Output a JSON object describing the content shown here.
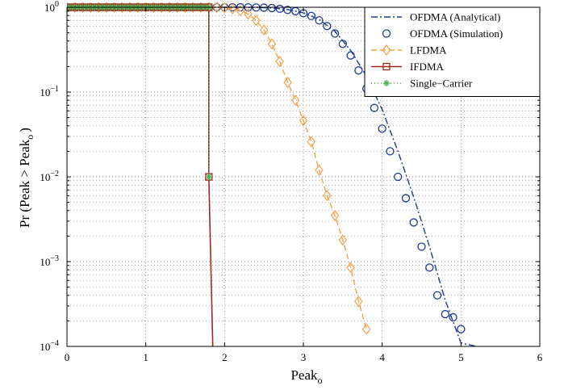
{
  "chart_data": {
    "type": "line",
    "title": "",
    "xlabel": "Peak",
    "xlabel_sub": "o",
    "ylabel_main": "Pr (Peak > Peak",
    "ylabel_sub": "o",
    "ylabel_tail": ")",
    "xlim": [
      0,
      6
    ],
    "ylim": [
      0.0001,
      1
    ],
    "y_scale": "log",
    "grid": true,
    "legend_placement": "top-right",
    "x_ticks": [
      0,
      1,
      2,
      3,
      4,
      5,
      6
    ],
    "x_tick_labels": [
      "0",
      "1",
      "2",
      "3",
      "4",
      "5",
      "6"
    ],
    "y_ticks": [
      {
        "value": 0.0001,
        "base": "10",
        "exp": "−4"
      },
      {
        "value": 0.001,
        "base": "10",
        "exp": "−3"
      },
      {
        "value": 0.01,
        "base": "10",
        "exp": "−2"
      },
      {
        "value": 0.1,
        "base": "10",
        "exp": "−1"
      },
      {
        "value": 1,
        "base": "10",
        "exp": "0"
      }
    ],
    "series": [
      {
        "name": "OFDMA (Analytical)",
        "color": "#1f3a93",
        "line": "dashdot",
        "marker": "none",
        "x": [
          0,
          2.0,
          2.2,
          2.4,
          2.6,
          2.8,
          3.0,
          3.2,
          3.4,
          3.6,
          3.8,
          4.0,
          4.2,
          4.4,
          4.6,
          4.8,
          5.0,
          5.2
        ],
        "y": [
          1,
          1,
          0.999,
          0.995,
          0.98,
          0.94,
          0.86,
          0.72,
          0.52,
          0.31,
          0.155,
          0.062,
          0.02,
          0.0058,
          0.0015,
          0.00035,
          0.00011,
          0.0001
        ]
      },
      {
        "name": "OFDMA (Simulation)",
        "color": "#1f3a93",
        "line": "none",
        "marker": "circle",
        "x": [
          1.9,
          2.0,
          2.1,
          2.2,
          2.3,
          2.4,
          2.5,
          2.6,
          2.7,
          2.8,
          2.9,
          3.0,
          3.1,
          3.2,
          3.3,
          3.4,
          3.5,
          3.6,
          3.7,
          3.8,
          3.9,
          4.0,
          4.1,
          4.2,
          4.3,
          4.4,
          4.5,
          4.6,
          4.7,
          4.8,
          4.9,
          5.0
        ],
        "y": [
          1,
          1,
          1,
          0.999,
          0.998,
          0.995,
          0.99,
          0.98,
          0.96,
          0.93,
          0.9,
          0.85,
          0.79,
          0.7,
          0.6,
          0.49,
          0.37,
          0.27,
          0.18,
          0.11,
          0.065,
          0.037,
          0.02,
          0.01,
          0.0056,
          0.0029,
          0.0015,
          0.00085,
          0.0004,
          0.00024,
          0.00022,
          0.00016
        ]
      },
      {
        "name": "LFDMA",
        "color": "#f5a04a",
        "line": "dashed",
        "marker": "diamond",
        "x": [
          0,
          0.1,
          0.2,
          0.3,
          0.4,
          0.5,
          0.6,
          0.7,
          0.8,
          0.9,
          1.0,
          1.1,
          1.2,
          1.3,
          1.4,
          1.5,
          1.6,
          1.7,
          1.8,
          1.9,
          2.0,
          2.1,
          2.2,
          2.3,
          2.4,
          2.5,
          2.6,
          2.7,
          2.8,
          2.9,
          3.0,
          3.1,
          3.2,
          3.3,
          3.4,
          3.5,
          3.6,
          3.7,
          3.8
        ],
        "y": [
          1,
          1,
          1,
          1,
          1,
          1,
          1,
          1,
          1,
          1,
          1,
          1,
          1,
          1,
          1,
          1,
          1,
          1,
          1,
          1,
          0.99,
          0.96,
          0.91,
          0.83,
          0.7,
          0.54,
          0.37,
          0.23,
          0.13,
          0.08,
          0.046,
          0.026,
          0.012,
          0.006,
          0.0035,
          0.0018,
          0.00085,
          0.00034,
          0.00016
        ]
      },
      {
        "name": "IFDMA",
        "color": "#9b2a1d",
        "line": "solid",
        "marker": "square",
        "x": [
          0,
          0.05,
          0.1,
          0.15,
          0.2,
          0.25,
          0.3,
          0.35,
          0.4,
          0.45,
          0.5,
          0.55,
          0.6,
          0.65,
          0.7,
          0.75,
          0.8,
          0.85,
          0.9,
          0.95,
          1.0,
          1.05,
          1.1,
          1.15,
          1.2,
          1.25,
          1.3,
          1.35,
          1.4,
          1.45,
          1.5,
          1.55,
          1.6,
          1.65,
          1.7,
          1.75,
          1.8,
          1.8,
          1.85
        ],
        "y": [
          1,
          1,
          1,
          1,
          1,
          1,
          1,
          1,
          1,
          1,
          1,
          1,
          1,
          1,
          1,
          1,
          1,
          1,
          1,
          1,
          1,
          1,
          1,
          1,
          1,
          1,
          1,
          1,
          1,
          1,
          1,
          1,
          1,
          1,
          1,
          1,
          1,
          0.01,
          0.0001
        ]
      },
      {
        "name": "Single−Carrier",
        "color": "#4caf50",
        "line": "dotted",
        "marker": "asterisk",
        "x": [
          0,
          0.05,
          0.1,
          0.15,
          0.2,
          0.25,
          0.3,
          0.35,
          0.4,
          0.45,
          0.5,
          0.55,
          0.6,
          0.65,
          0.7,
          0.75,
          0.8,
          0.85,
          0.9,
          0.95,
          1.0,
          1.05,
          1.1,
          1.15,
          1.2,
          1.25,
          1.3,
          1.35,
          1.4,
          1.45,
          1.5,
          1.55,
          1.6,
          1.65,
          1.7,
          1.75,
          1.8,
          1.8
        ],
        "y": [
          1,
          1,
          1,
          1,
          1,
          1,
          1,
          1,
          1,
          1,
          1,
          1,
          1,
          1,
          1,
          1,
          1,
          1,
          1,
          1,
          1,
          1,
          1,
          1,
          1,
          1,
          1,
          1,
          1,
          1,
          1,
          1,
          1,
          1,
          1,
          1,
          1,
          0.01
        ]
      }
    ]
  }
}
